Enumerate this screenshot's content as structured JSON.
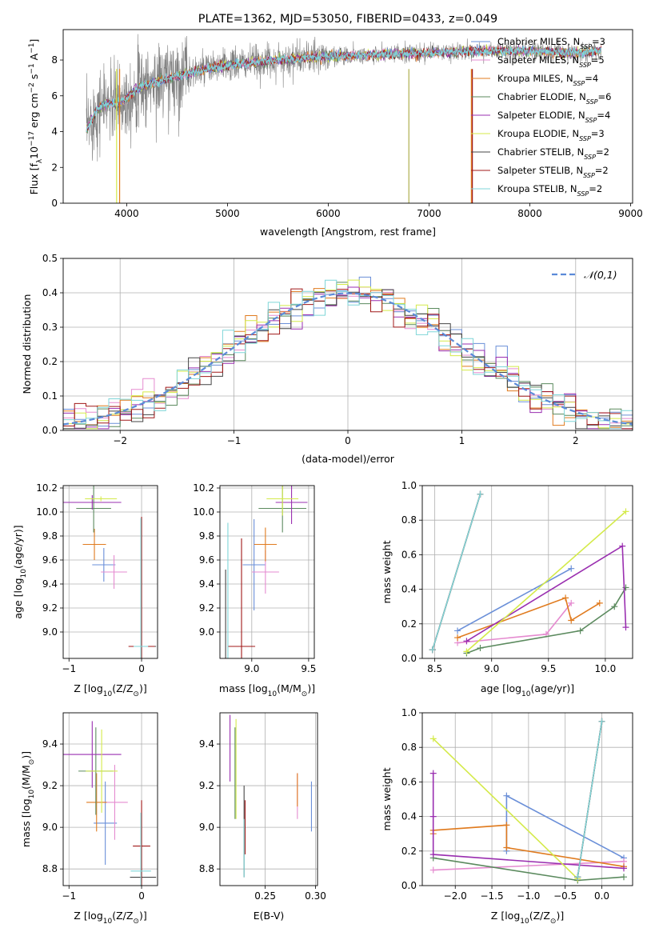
{
  "colors": {
    "series": [
      "#6a8fd8",
      "#e58bd0",
      "#e07b1f",
      "#5b8a5e",
      "#9a2fb0",
      "#d4ea4a",
      "#444444",
      "#a01818",
      "#7fd6d8"
    ],
    "top_grey": "#808080",
    "normal_curve": "#5b8ad8"
  },
  "chart_data": [
    {
      "id": "spectrum",
      "type": "line",
      "title": "PLATE=1362, MJD=53050, FIBERID=0433, z=0.049",
      "xlabel": "wavelength [Angstrom, rest frame]",
      "ylabel_parts": [
        "Flux [f",
        "λ",
        "10",
        "−17",
        " erg cm",
        "−2",
        " s",
        "−1",
        " A",
        "−1",
        "]"
      ],
      "xlim": [
        3370,
        9020
      ],
      "ylim": [
        0,
        9.7
      ],
      "xticks": [
        4000,
        5000,
        6000,
        7000,
        8000,
        9000
      ],
      "yticks": [
        0,
        2,
        4,
        6,
        8
      ],
      "legend_position": "top-right",
      "legend": [
        {
          "name": "Chabrier MILES, N",
          "sub": "SSP",
          "tail": "=3"
        },
        {
          "name": "Salpeter MILES, N",
          "sub": "SSP",
          "tail": "=5"
        },
        {
          "name": "Kroupa MILES, N",
          "sub": "SSP",
          "tail": "=4"
        },
        {
          "name": "Chabrier ELODIE, N",
          "sub": "SSP",
          "tail": "=6"
        },
        {
          "name": "Salpeter ELODIE, N",
          "sub": "SSP",
          "tail": "=4"
        },
        {
          "name": "Kroupa ELODIE, N",
          "sub": "SSP",
          "tail": "=3"
        },
        {
          "name": "Chabrier STELIB, N",
          "sub": "SSP",
          "tail": "=2"
        },
        {
          "name": "Salpeter STELIB, N",
          "sub": "SSP",
          "tail": "=2"
        },
        {
          "name": "Kroupa STELIB, N",
          "sub": "SSP",
          "tail": "=2"
        }
      ],
      "continuum": [
        [
          3600,
          4.1
        ],
        [
          3700,
          5.2
        ],
        [
          3800,
          5.6
        ],
        [
          3900,
          5.5
        ],
        [
          4000,
          5.9
        ],
        [
          4100,
          6.4
        ],
        [
          4300,
          6.8
        ],
        [
          4500,
          7.1
        ],
        [
          4800,
          7.5
        ],
        [
          5000,
          7.7
        ],
        [
          5500,
          8.0
        ],
        [
          6000,
          8.2
        ],
        [
          6500,
          8.3
        ],
        [
          7000,
          8.4
        ],
        [
          7500,
          8.5
        ],
        [
          8000,
          8.5
        ],
        [
          8500,
          8.4
        ],
        [
          8700,
          8.5
        ]
      ],
      "vertical_drops": [
        [
          3900,
          "#d4ea4a"
        ],
        [
          3930,
          "#e07b1f"
        ],
        [
          6800,
          "#b0b050"
        ],
        [
          7420,
          "#e07b1f"
        ],
        [
          7430,
          "#a01818"
        ]
      ]
    },
    {
      "id": "residuals",
      "type": "histogram",
      "xlabel": "(data-model)/error",
      "ylabel": "Normed distribution",
      "xlim": [
        -2.5,
        2.5
      ],
      "ylim": [
        0,
        0.5
      ],
      "xticks": [
        -2,
        -1,
        0,
        1,
        2
      ],
      "yticks": [
        0.0,
        0.1,
        0.2,
        0.3,
        0.4,
        0.5
      ],
      "bin_width": 0.1,
      "legend_position": "top-right",
      "normal_label": "𝒩(0,1)"
    },
    {
      "id": "age_vs_Z",
      "type": "scatter",
      "xlabel_parts": [
        "Z [log",
        "10",
        "(Z/Z",
        "⊙",
        ")]"
      ],
      "ylabel_parts": [
        "age  [log",
        "10",
        "(age/yr)]"
      ],
      "xlim": [
        -1.08,
        0.22
      ],
      "ylim": [
        8.78,
        10.22
      ],
      "xticks": [
        -1,
        0
      ],
      "yticks": [
        9.0,
        9.2,
        9.4,
        9.6,
        9.8,
        10.0,
        10.2
      ],
      "points": [
        {
          "x": -0.52,
          "y": 9.56,
          "xerr": 0.16,
          "yerr": 0.14
        },
        {
          "x": -0.38,
          "y": 9.5,
          "xerr": 0.18,
          "yerr": 0.14
        },
        {
          "x": -0.65,
          "y": 9.73,
          "xerr": 0.16,
          "yerr": 0.13
        },
        {
          "x": -0.66,
          "y": 10.03,
          "xerr": 0.24,
          "yerr": 0.2
        },
        {
          "x": -0.68,
          "y": 10.08,
          "xerr": 0.4,
          "yerr": 0.06
        },
        {
          "x": -0.56,
          "y": 10.11,
          "xerr": 0.22,
          "yerr": 0.02
        },
        {
          "x": 0.02,
          "y": 8.88,
          "xerr": 0.18,
          "yerr": 0.0
        },
        {
          "x": 0.0,
          "y": 8.88,
          "xerr": 0.18,
          "yerr": 1.08
        },
        {
          "x": -0.01,
          "y": 8.88,
          "xerr": 0.1,
          "yerr": 1.07
        }
      ]
    },
    {
      "id": "age_vs_mass",
      "type": "scatter",
      "xlabel_parts": [
        "mass [log",
        "10",
        "(M/M",
        "⊙",
        ")]"
      ],
      "xlim": [
        8.72,
        9.55
      ],
      "ylim": [
        8.78,
        10.22
      ],
      "xticks": [
        9.0,
        9.5
      ],
      "yticks": [
        9.0,
        9.2,
        9.4,
        9.6,
        9.8,
        10.0,
        10.2
      ],
      "points": [
        {
          "x": 9.02,
          "y": 9.56,
          "xerr": 0.1,
          "yerr": 0.38
        },
        {
          "x": 9.12,
          "y": 9.5,
          "xerr": 0.12,
          "yerr": 0.18
        },
        {
          "x": 9.12,
          "y": 9.73,
          "xerr": 0.1,
          "yerr": 0.14
        },
        {
          "x": 9.27,
          "y": 10.03,
          "xerr": 0.21,
          "yerr": 0.2
        },
        {
          "x": 9.35,
          "y": 10.08,
          "xerr": 0.14,
          "yerr": 0.18
        },
        {
          "x": 9.27,
          "y": 10.11,
          "xerr": 0.14,
          "yerr": 0.14
        },
        {
          "x": 8.77,
          "y": 8.88,
          "xerr": 0.0,
          "yerr": 0.64
        },
        {
          "x": 8.91,
          "y": 8.88,
          "xerr": 0.12,
          "yerr": 0.9
        },
        {
          "x": 8.79,
          "y": 8.88,
          "xerr": 0.0,
          "yerr": 1.03
        }
      ]
    },
    {
      "id": "weight_vs_age",
      "type": "line",
      "xlabel_parts": [
        "age  [log",
        "10",
        "(age/yr)]"
      ],
      "ylabel": "mass weight",
      "xlim": [
        8.39,
        10.24
      ],
      "ylim": [
        0,
        1.0
      ],
      "xticks": [
        8.5,
        9.0,
        9.5,
        10.0
      ],
      "yticks": [
        0.0,
        0.2,
        0.4,
        0.6,
        0.8,
        1.0
      ],
      "series": [
        {
          "x": [
            8.7,
            9.7
          ],
          "y": [
            0.16,
            0.52
          ]
        },
        {
          "x": [
            8.7,
            9.48,
            9.7
          ],
          "y": [
            0.09,
            0.14,
            0.32
          ]
        },
        {
          "x": [
            8.7,
            9.65,
            9.7,
            9.95
          ],
          "y": [
            0.12,
            0.35,
            0.22,
            0.32
          ]
        },
        {
          "x": [
            8.78,
            8.9,
            9.78,
            10.08,
            10.18
          ],
          "y": [
            0.03,
            0.06,
            0.16,
            0.3,
            0.41
          ]
        },
        {
          "x": [
            8.78,
            10.15,
            10.18
          ],
          "y": [
            0.1,
            0.65,
            0.18
          ]
        },
        {
          "x": [
            8.78,
            10.18
          ],
          "y": [
            0.04,
            0.85
          ]
        },
        {
          "x": [
            8.48,
            8.9
          ],
          "y": [
            0.05,
            0.95
          ]
        },
        {
          "x": [
            8.48,
            8.9
          ],
          "y": [
            0.05,
            0.95
          ]
        },
        {
          "x": [
            8.48,
            8.9
          ],
          "y": [
            0.05,
            0.95
          ]
        }
      ]
    },
    {
      "id": "mass_vs_Z",
      "type": "scatter",
      "xlabel_parts": [
        "Z [log",
        "10",
        "(Z/Z",
        "⊙",
        ")]"
      ],
      "ylabel_parts": [
        "mass [log",
        "10",
        "(M/M",
        "⊙",
        ")]"
      ],
      "xlim": [
        -1.08,
        0.22
      ],
      "ylim": [
        8.72,
        9.55
      ],
      "xticks": [
        -1,
        0
      ],
      "yticks": [
        8.8,
        9.0,
        9.2,
        9.4
      ],
      "points": [
        {
          "x": -0.5,
          "y": 9.02,
          "xerr": 0.16,
          "yerr": 0.2
        },
        {
          "x": -0.37,
          "y": 9.12,
          "xerr": 0.18,
          "yerr": 0.18
        },
        {
          "x": -0.62,
          "y": 9.12,
          "xerr": 0.14,
          "yerr": 0.14
        },
        {
          "x": -0.63,
          "y": 9.27,
          "xerr": 0.24,
          "yerr": 0.21
        },
        {
          "x": -0.68,
          "y": 9.35,
          "xerr": 0.4,
          "yerr": 0.16
        },
        {
          "x": -0.55,
          "y": 9.27,
          "xerr": 0.22,
          "yerr": 0.2
        },
        {
          "x": 0.02,
          "y": 8.76,
          "xerr": 0.18,
          "yerr": 0.0
        },
        {
          "x": 0.0,
          "y": 8.91,
          "xerr": 0.12,
          "yerr": 0.22
        },
        {
          "x": -0.01,
          "y": 8.79,
          "xerr": 0.14,
          "yerr": 0.28
        }
      ]
    },
    {
      "id": "mass_vs_EBV",
      "type": "scatter",
      "xlabel": "E(B-V)",
      "xlim": [
        0.205,
        0.302
      ],
      "ylim": [
        8.72,
        9.55
      ],
      "xticks": [
        0.25,
        0.3
      ],
      "yticks": [
        8.8,
        9.0,
        9.2,
        9.4
      ],
      "points": [
        {
          "x": 0.296,
          "y": 9.1,
          "yerr": 0.12
        },
        {
          "x": 0.282,
          "y": 9.15,
          "yerr": 0.11
        },
        {
          "x": 0.282,
          "y": 9.18,
          "yerr": 0.08
        },
        {
          "x": 0.22,
          "y": 9.26,
          "yerr": 0.22
        },
        {
          "x": 0.215,
          "y": 9.38,
          "yerr": 0.16
        },
        {
          "x": 0.221,
          "y": 9.28,
          "yerr": 0.24
        },
        {
          "x": 0.229,
          "y": 8.98,
          "yerr": 0.22
        },
        {
          "x": 0.23,
          "y": 9.0,
          "yerr": 0.13
        },
        {
          "x": 0.229,
          "y": 8.9,
          "yerr": 0.14
        }
      ]
    },
    {
      "id": "weight_vs_Z",
      "type": "line",
      "xlabel_parts": [
        "Z [log",
        "10",
        "(Z/Z",
        "⊙",
        ")]"
      ],
      "ylabel": "mass weight",
      "xlim": [
        -2.45,
        0.42
      ],
      "ylim": [
        0,
        1.0
      ],
      "xticks": [
        -2.0,
        -1.5,
        -1.0,
        -0.5,
        0.0
      ],
      "yticks": [
        0.0,
        0.2,
        0.4,
        0.6,
        0.8,
        1.0
      ],
      "series": [
        {
          "x": [
            -1.3,
            -1.3,
            0.3
          ],
          "y": [
            0.2,
            0.52,
            0.16
          ]
        },
        {
          "x": [
            -2.3,
            0.3
          ],
          "y": [
            0.09,
            0.14
          ]
        },
        {
          "x": [
            -2.3,
            -2.3,
            -1.3,
            -1.3,
            0.3
          ],
          "y": [
            0.3,
            0.32,
            0.35,
            0.22,
            0.11
          ]
        },
        {
          "x": [
            -2.3,
            -0.33,
            0.3
          ],
          "y": [
            0.16,
            0.03,
            0.05
          ]
        },
        {
          "x": [
            -2.3,
            -2.3,
            -2.3,
            0.3
          ],
          "y": [
            0.65,
            0.4,
            0.18,
            0.1
          ]
        },
        {
          "x": [
            -2.3,
            -0.33
          ],
          "y": [
            0.85,
            0.04
          ]
        },
        {
          "x": [
            -0.33,
            0.0
          ],
          "y": [
            0.05,
            0.95
          ]
        },
        {
          "x": [
            -0.33,
            0.0
          ],
          "y": [
            0.05,
            0.95
          ]
        },
        {
          "x": [
            -0.33,
            0.0
          ],
          "y": [
            0.05,
            0.95
          ]
        }
      ]
    }
  ]
}
